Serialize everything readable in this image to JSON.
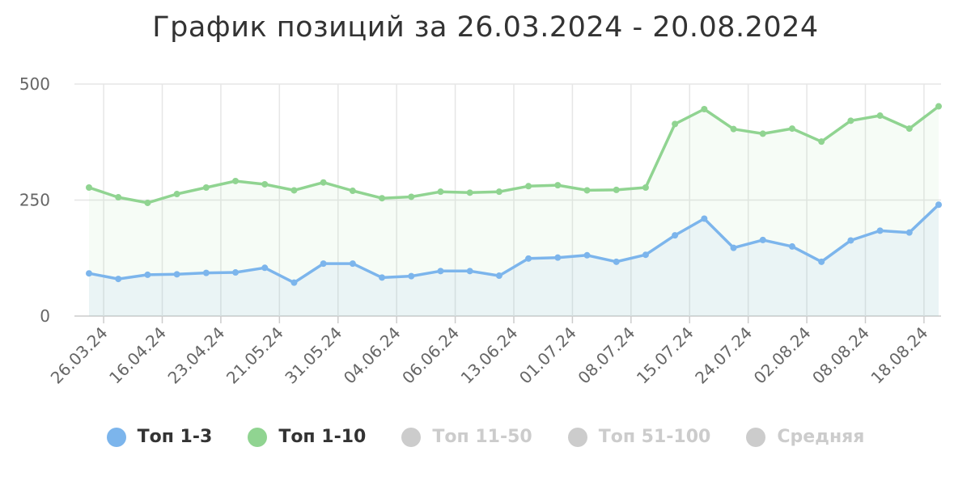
{
  "chart_data": {
    "type": "area",
    "title": "График позиций за 26.03.2024 - 20.08.2024",
    "ylim": [
      0,
      500
    ],
    "yticks": [
      "0",
      "250",
      "500"
    ],
    "xtick_labels": [
      "26.03.24",
      "16.04.24",
      "23.04.24",
      "21.05.24",
      "31.05.24",
      "04.06.24",
      "06.06.24",
      "13.06.24",
      "01.07.24",
      "08.07.24",
      "15.07.24",
      "24.07.24",
      "02.08.24",
      "08.08.24",
      "18.08.24"
    ],
    "grid": true,
    "legend_position": "bottom",
    "series": [
      {
        "name": "Топ 1-3",
        "color": "#7cb5ec",
        "visible": true,
        "values": [
          92,
          80,
          89,
          90,
          93,
          94,
          104,
          72,
          113,
          113,
          83,
          86,
          97,
          97,
          87,
          124,
          126,
          131,
          117,
          132,
          174,
          210,
          147,
          164,
          150,
          117,
          163,
          184,
          180,
          240
        ]
      },
      {
        "name": "Топ 1-10",
        "color": "#90d491",
        "visible": true,
        "values": [
          277,
          256,
          244,
          263,
          277,
          291,
          284,
          271,
          288,
          270,
          254,
          257,
          268,
          266,
          268,
          280,
          282,
          271,
          272,
          277,
          414,
          446,
          403,
          393,
          404,
          376,
          421,
          432,
          404,
          452
        ]
      },
      {
        "name": "Топ 11-50",
        "color": "#cccccc",
        "visible": false,
        "values": []
      },
      {
        "name": "Топ 51-100",
        "color": "#cccccc",
        "visible": false,
        "values": []
      },
      {
        "name": "Средняя",
        "color": "#cccccc",
        "visible": false,
        "values": []
      }
    ]
  }
}
